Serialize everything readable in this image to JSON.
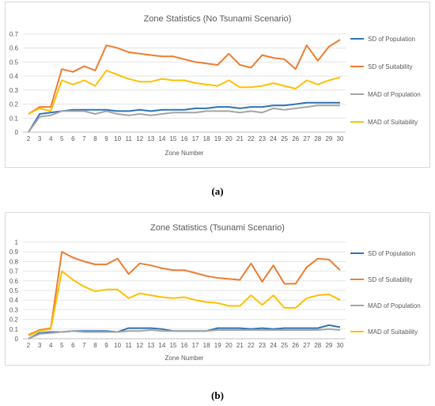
{
  "chart_data": [
    {
      "type": "line",
      "title": "Zone Statistics (No Tsunami Scenario)",
      "xlabel": "Zone Number",
      "ylabel": "",
      "x": [
        2,
        3,
        4,
        5,
        6,
        7,
        8,
        9,
        10,
        11,
        12,
        13,
        14,
        15,
        16,
        17,
        18,
        19,
        20,
        21,
        22,
        23,
        24,
        25,
        26,
        27,
        28,
        29,
        30
      ],
      "ylim": [
        0,
        0.7
      ],
      "yticks": [
        "0",
        "0.1",
        "0.2",
        "0.3",
        "0.4",
        "0.5",
        "0.6",
        "0.7"
      ],
      "grid": true,
      "legend": "right",
      "series": [
        {
          "name": "SD of Population",
          "color": "#2E75B6",
          "values": [
            0.0,
            0.13,
            0.14,
            0.15,
            0.16,
            0.16,
            0.16,
            0.16,
            0.15,
            0.15,
            0.16,
            0.15,
            0.16,
            0.16,
            0.16,
            0.17,
            0.17,
            0.18,
            0.18,
            0.17,
            0.18,
            0.18,
            0.19,
            0.19,
            0.2,
            0.21,
            0.21,
            0.21,
            0.21
          ]
        },
        {
          "name": "SD of Suitability",
          "color": "#ED7D31",
          "values": [
            0.13,
            0.18,
            0.18,
            0.45,
            0.43,
            0.47,
            0.44,
            0.62,
            0.6,
            0.57,
            0.56,
            0.55,
            0.54,
            0.54,
            0.52,
            0.5,
            0.49,
            0.48,
            0.56,
            0.48,
            0.46,
            0.55,
            0.53,
            0.52,
            0.45,
            0.62,
            0.51,
            0.61,
            0.66
          ]
        },
        {
          "name": "MAD of Population",
          "color": "#A5A5A5",
          "values": [
            0.0,
            0.11,
            0.12,
            0.15,
            0.15,
            0.15,
            0.13,
            0.15,
            0.13,
            0.12,
            0.13,
            0.12,
            0.13,
            0.14,
            0.14,
            0.14,
            0.15,
            0.15,
            0.15,
            0.14,
            0.15,
            0.14,
            0.17,
            0.16,
            0.17,
            0.18,
            0.19,
            0.19,
            0.19
          ]
        },
        {
          "name": "MAD of Suitability",
          "color": "#FFC000",
          "values": [
            0.13,
            0.17,
            0.15,
            0.37,
            0.34,
            0.37,
            0.33,
            0.44,
            0.41,
            0.38,
            0.36,
            0.36,
            0.38,
            0.37,
            0.37,
            0.35,
            0.34,
            0.33,
            0.37,
            0.32,
            0.32,
            0.33,
            0.35,
            0.33,
            0.31,
            0.37,
            0.34,
            0.37,
            0.39
          ]
        }
      ]
    },
    {
      "type": "line",
      "title": "Zone Statistics (Tsunami Scenario)",
      "xlabel": "Zone Number",
      "ylabel": "",
      "x": [
        2,
        3,
        4,
        5,
        6,
        7,
        8,
        9,
        10,
        11,
        12,
        13,
        14,
        15,
        16,
        17,
        18,
        19,
        20,
        21,
        22,
        23,
        24,
        25,
        26,
        27,
        28,
        29,
        30
      ],
      "ylim": [
        0,
        1.0
      ],
      "yticks": [
        "0",
        "0.1",
        "0.2",
        "0.3",
        "0.4",
        "0.5",
        "0.6",
        "0.7",
        "0.8",
        "0.9",
        "1"
      ],
      "grid": true,
      "legend": "right",
      "series": [
        {
          "name": "SD of Population",
          "color": "#2E75B6",
          "values": [
            0.0,
            0.06,
            0.07,
            0.07,
            0.08,
            0.08,
            0.08,
            0.08,
            0.07,
            0.11,
            0.11,
            0.11,
            0.1,
            0.08,
            0.08,
            0.08,
            0.08,
            0.11,
            0.11,
            0.11,
            0.1,
            0.11,
            0.1,
            0.11,
            0.11,
            0.11,
            0.11,
            0.14,
            0.12
          ]
        },
        {
          "name": "SD of Suitability",
          "color": "#ED7D31",
          "values": [
            0.04,
            0.09,
            0.11,
            0.9,
            0.84,
            0.8,
            0.77,
            0.77,
            0.83,
            0.67,
            0.78,
            0.76,
            0.73,
            0.71,
            0.71,
            0.68,
            0.65,
            0.63,
            0.62,
            0.61,
            0.78,
            0.59,
            0.76,
            0.57,
            0.57,
            0.74,
            0.83,
            0.82,
            0.71
          ]
        },
        {
          "name": "MAD of Population",
          "color": "#A5A5A5",
          "values": [
            0.0,
            0.05,
            0.06,
            0.07,
            0.08,
            0.07,
            0.07,
            0.07,
            0.07,
            0.08,
            0.08,
            0.09,
            0.08,
            0.08,
            0.08,
            0.08,
            0.08,
            0.09,
            0.09,
            0.09,
            0.09,
            0.09,
            0.09,
            0.09,
            0.09,
            0.09,
            0.09,
            0.1,
            0.09
          ]
        },
        {
          "name": "MAD of Suitability",
          "color": "#FFC000",
          "values": [
            0.03,
            0.08,
            0.1,
            0.7,
            0.61,
            0.54,
            0.49,
            0.51,
            0.51,
            0.42,
            0.47,
            0.45,
            0.43,
            0.42,
            0.43,
            0.4,
            0.38,
            0.37,
            0.34,
            0.34,
            0.45,
            0.35,
            0.45,
            0.32,
            0.32,
            0.42,
            0.45,
            0.46,
            0.4
          ]
        }
      ]
    }
  ],
  "captions": {
    "a": "(a)",
    "b": "(b)"
  }
}
